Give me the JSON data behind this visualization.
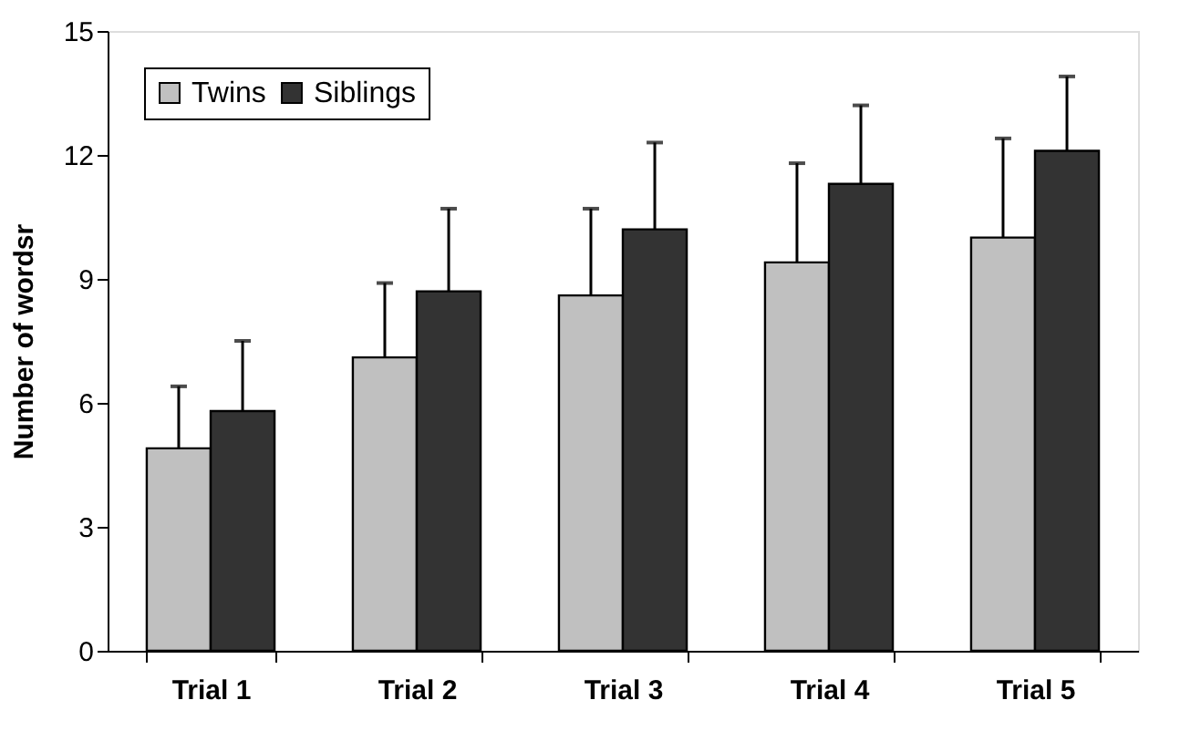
{
  "chart_data": {
    "type": "bar",
    "ylabel": "Number of wordsr",
    "categories": [
      "Trial 1",
      "Trial 2",
      "Trial 3",
      "Trial 4",
      "Trial 5"
    ],
    "series": [
      {
        "name": "Twins",
        "color": "#c0c0c0",
        "values": [
          4.9,
          7.1,
          8.6,
          9.4,
          10.0
        ],
        "errors": [
          [
            4.9,
            6.4
          ],
          [
            7.1,
            8.9
          ],
          [
            8.6,
            10.7
          ],
          [
            9.4,
            11.8
          ],
          [
            10.0,
            12.4
          ]
        ]
      },
      {
        "name": "Siblings",
        "color": "#333333",
        "values": [
          5.8,
          8.7,
          10.2,
          11.3,
          12.1
        ],
        "errors": [
          [
            5.8,
            7.5
          ],
          [
            8.7,
            10.7
          ],
          [
            10.2,
            12.3
          ],
          [
            11.3,
            13.2
          ],
          [
            12.1,
            13.9
          ]
        ]
      }
    ],
    "ylim": [
      0,
      15
    ],
    "yticks": [
      0,
      3,
      6,
      9,
      12,
      15
    ],
    "grid": false,
    "legend": "top left"
  }
}
